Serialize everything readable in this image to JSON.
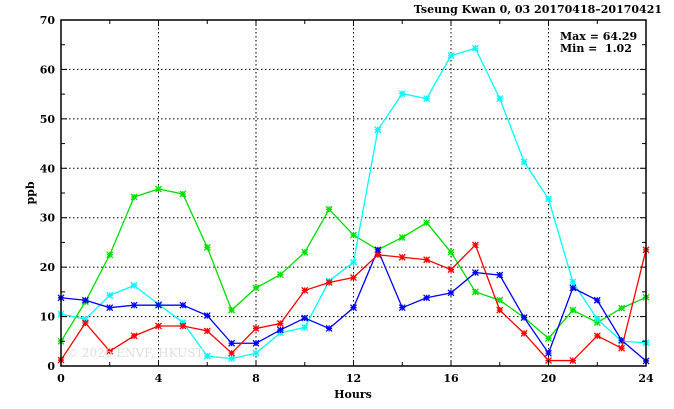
{
  "chart_data": {
    "type": "line",
    "title": "Tseung Kwan 0, 03 20170418–20170421",
    "xlabel": "Hours",
    "ylabel": "ppb",
    "xlim": [
      0,
      24
    ],
    "ylim": [
      0,
      70
    ],
    "xticks": [
      0,
      4,
      8,
      12,
      16,
      20,
      24
    ],
    "yticks": [
      0,
      10,
      20,
      30,
      40,
      50,
      60,
      70
    ],
    "grid": true,
    "annotations": {
      "max": "Max = 64.29",
      "min": "Min =  1.02"
    },
    "watermark": "© 2026 ENVF, HKUST",
    "x": [
      0,
      1,
      2,
      3,
      4,
      5,
      6,
      7,
      8,
      9,
      10,
      11,
      12,
      13,
      14,
      15,
      16,
      17,
      18,
      19,
      20,
      21,
      22,
      23,
      24
    ],
    "series": [
      {
        "name": "green",
        "color": "#00e000",
        "values": [
          5,
          13,
          22.5,
          34.2,
          35.8,
          34.8,
          24,
          11.3,
          15.8,
          18.5,
          23,
          31.7,
          26.5,
          23.5,
          26,
          29,
          23,
          15,
          13.3,
          9.8,
          5.6,
          11.3,
          8.8,
          11.7,
          13.9
        ]
      },
      {
        "name": "cyan",
        "color": "#00ffff",
        "values": [
          10.5,
          9.5,
          14.3,
          16.3,
          12.5,
          8.8,
          2,
          1.5,
          2.6,
          6.7,
          7.8,
          17.2,
          21,
          47.8,
          55.1,
          54.1,
          62.8,
          64.29,
          54.1,
          41.3,
          33.8,
          17,
          9.5,
          5,
          4.7
        ]
      },
      {
        "name": "blue",
        "color": "#0000ff",
        "values": [
          13.8,
          13.3,
          11.8,
          12.3,
          12.3,
          12.3,
          10.2,
          4.6,
          4.6,
          7.3,
          9.7,
          7.6,
          11.8,
          23.5,
          11.8,
          13.8,
          14.8,
          18.9,
          18.4,
          9.8,
          2.6,
          15.8,
          13.3,
          5.2,
          1.02
        ]
      },
      {
        "name": "red",
        "color": "#ff0000",
        "values": [
          1.2,
          8.7,
          3,
          6.1,
          8.1,
          8.1,
          7.1,
          2.6,
          7.6,
          8.6,
          15.3,
          16.9,
          17.9,
          22.5,
          22,
          21.5,
          19.5,
          24.5,
          11.3,
          6.6,
          1.1,
          1.1,
          6.1,
          3.6,
          23.5
        ]
      }
    ]
  }
}
